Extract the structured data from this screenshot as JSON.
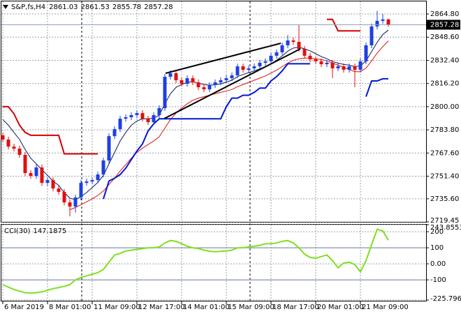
{
  "chart_data": [
    {
      "type": "candlestick",
      "title": "S&P,fs,H4",
      "up_color": "#1e40e0",
      "down_color": "#e01010",
      "grid": true,
      "xlim": [
        -0.5,
        75.75
      ],
      "xticks": [
        {
          "value": 0,
          "label": "6 Mar 2019"
        },
        {
          "value": 8,
          "label": "8 Mar 01:00"
        },
        {
          "value": 16,
          "label": "11 Mar 09:00"
        },
        {
          "value": 24,
          "label": "12 Mar 17:00"
        },
        {
          "value": 32,
          "label": "14 Mar 01:00"
        },
        {
          "value": 40,
          "label": "15 Mar 09:00"
        },
        {
          "value": 48,
          "label": "18 Mar 17:00"
        },
        {
          "value": 56,
          "label": "20 Mar 01:00"
        },
        {
          "value": 64,
          "label": "21 Mar 09:00"
        }
      ],
      "ylim": [
        2719.45,
        2873.6
      ],
      "yticks": [
        2719.45,
        {
          "value": 2735.6,
          "label": "2735.60"
        },
        {
          "value": 2751.4,
          "label": "2751.40"
        },
        {
          "value": 2767.6,
          "label": "2767.60"
        },
        {
          "value": 2783.8,
          "label": "2783.80"
        },
        {
          "value": 2800,
          "label": "2800.00"
        },
        {
          "value": 2816.2,
          "label": "2816.20"
        },
        {
          "value": 2832.4,
          "label": "2832.40"
        },
        {
          "value": 2848.6,
          "label": "2848.60"
        },
        {
          "value": 2864.8,
          "label": "2864.80"
        }
      ],
      "open": [
        2780.0,
        2777.0,
        2772.1,
        2770.7,
        2766.3,
        2753.6,
        2751.6,
        2757.5,
        2746.7,
        2748.7,
        2742.8,
        2740.4,
        2733.1,
        2730.2,
        2736.5,
        2746.7,
        2747.7,
        2748.7,
        2752.6,
        2762.4,
        2779.4,
        2784.3,
        2791.6,
        2792.6,
        2794.1,
        2795.5,
        2791.6,
        2789.2,
        2794.1,
        2799.0,
        2820.9,
        2823.4,
        2818.5,
        2816.0,
        2819.9,
        2817.0,
        2813.6,
        2812.1,
        2815.1,
        2817.0,
        2818.5,
        2819.9,
        2821.9,
        2828.2,
        2825.8,
        2826.8,
        2828.2,
        2830.7,
        2831.7,
        2835.6,
        2838.0,
        2842.9,
        2846.3,
        2845.3,
        2840.4,
        2835.6,
        2833.1,
        2831.7,
        2829.7,
        2830.7,
        2826.8,
        2828.2,
        2825.8,
        2828.2,
        2825.8,
        2831.7,
        2842.9,
        2856.1,
        2860.0,
        2861.03
      ],
      "high": [
        2782.0,
        2779.0,
        2774.1,
        2772.7,
        2768.3,
        2755.6,
        2759.5,
        2759.5,
        2750.7,
        2750.7,
        2744.8,
        2742.4,
        2735.1,
        2738.5,
        2748.7,
        2749.7,
        2750.7,
        2754.6,
        2764.4,
        2781.4,
        2786.3,
        2793.6,
        2794.6,
        2796.1,
        2797.5,
        2797.5,
        2793.6,
        2796.1,
        2801.0,
        2822.9,
        2825.4,
        2825.4,
        2820.5,
        2821.9,
        2821.9,
        2819.0,
        2815.6,
        2817.1,
        2819.0,
        2820.5,
        2821.9,
        2823.9,
        2830.2,
        2830.2,
        2828.8,
        2830.2,
        2832.7,
        2833.7,
        2837.6,
        2840.0,
        2844.9,
        2850.0,
        2848.3,
        2857.5,
        2842.4,
        2837.6,
        2835.1,
        2833.7,
        2832.7,
        2832.7,
        2830.2,
        2830.2,
        2830.2,
        2830.2,
        2833.7,
        2844.9,
        2858.1,
        2867.0,
        2865.0,
        2861.53
      ],
      "low": [
        2775.0,
        2770.1,
        2768.7,
        2764.3,
        2751.6,
        2749.6,
        2749.6,
        2744.7,
        2744.7,
        2740.8,
        2738.4,
        2731.1,
        2723.3,
        2726.0,
        2734.5,
        2744.7,
        2745.7,
        2746.7,
        2750.6,
        2760.4,
        2777.4,
        2782.3,
        2789.6,
        2790.6,
        2792.1,
        2789.6,
        2787.2,
        2787.2,
        2792.1,
        2797.0,
        2818.9,
        2816.5,
        2814.0,
        2814.0,
        2815.0,
        2811.6,
        2810.1,
        2810.1,
        2813.1,
        2815.0,
        2816.5,
        2817.9,
        2819.9,
        2823.8,
        2823.8,
        2824.8,
        2826.2,
        2828.7,
        2829.7,
        2833.6,
        2836.0,
        2840.9,
        2843.3,
        2838.4,
        2833.6,
        2831.1,
        2829.7,
        2827.7,
        2827.7,
        2820.0,
        2824.8,
        2823.8,
        2823.8,
        2813.6,
        2823.8,
        2829.7,
        2840.9,
        2854.1,
        2858.0,
        2855.78
      ],
      "close": [
        2777.0,
        2772.1,
        2770.7,
        2766.3,
        2753.6,
        2751.6,
        2757.5,
        2746.7,
        2748.7,
        2742.8,
        2740.4,
        2733.1,
        2730.2,
        2736.5,
        2746.7,
        2747.7,
        2748.7,
        2752.6,
        2762.4,
        2779.4,
        2784.3,
        2791.6,
        2792.6,
        2794.1,
        2795.5,
        2791.6,
        2789.2,
        2794.1,
        2799.0,
        2820.9,
        2823.4,
        2818.5,
        2816.0,
        2819.9,
        2817.0,
        2813.6,
        2812.1,
        2815.1,
        2817.0,
        2818.5,
        2819.9,
        2821.9,
        2828.2,
        2825.8,
        2826.8,
        2828.2,
        2830.7,
        2831.7,
        2835.6,
        2838.0,
        2842.9,
        2846.3,
        2845.3,
        2840.4,
        2835.6,
        2833.1,
        2831.7,
        2829.7,
        2830.7,
        2826.8,
        2828.2,
        2825.8,
        2828.2,
        2825.8,
        2831.7,
        2842.9,
        2856.1,
        2860.0,
        2861.0,
        2857.28
      ],
      "overlays": [
        {
          "color": "#0a1a5c",
          "width": 1,
          "values": [
            2791.0,
            2787.0,
            2782.0,
            2777.0,
            2770.0,
            2764.0,
            2760.0,
            2756.0,
            2752.0,
            2748.0,
            2745.0,
            2740.0,
            2736.0,
            2735.0,
            2737.0,
            2740.0,
            2743.5,
            2747.0,
            2752.0,
            2760.0,
            2768.0,
            2776.0,
            2782.0,
            2787.0,
            2790.0,
            2791.5,
            2791.5,
            2792.0,
            2794.0,
            2802.0,
            2809.0,
            2813.5,
            2815.5,
            2817.0,
            2817.5,
            2816.5,
            2815.5,
            2815.0,
            2815.3,
            2816.0,
            2817.2,
            2818.5,
            2821.0,
            2822.5,
            2823.8,
            2825.0,
            2826.5,
            2828.0,
            2830.0,
            2832.5,
            2835.5,
            2838.8,
            2841.0,
            2841.5,
            2840.5,
            2839.0,
            2837.0,
            2835.0,
            2833.5,
            2831.5,
            2830.5,
            2829.5,
            2829.0,
            2828.0,
            2828.5,
            2832.0,
            2838.5,
            2845.0,
            2850.5,
            2853.5
          ]
        },
        {
          "color": "#e01010",
          "width": 1,
          "values": [
            null,
            null,
            null,
            null,
            null,
            null,
            null,
            null,
            null,
            null,
            null,
            null,
            2728.0,
            2729.5,
            2731.5,
            2733.5,
            2735.5,
            2738.0,
            2741.0,
            2745.5,
            2750.0,
            2755.0,
            2759.5,
            2764.0,
            2768.0,
            2771.0,
            2773.5,
            2776.0,
            2779.0,
            2785.0,
            2791.0,
            2795.5,
            2799.0,
            2802.0,
            2804.5,
            2806.0,
            2807.0,
            2808.0,
            2809.0,
            2810.0,
            2811.0,
            2812.0,
            2814.0,
            2815.5,
            2817.0,
            2818.5,
            2820.0,
            2821.5,
            2823.5,
            2825.5,
            2828.0,
            2830.5,
            2832.5,
            2833.5,
            2834.0,
            2834.0,
            2833.5,
            2833.0,
            2832.0,
            2830.5,
            2829.0,
            2827.5,
            2826.0,
            2824.5,
            2824.5,
            2827.0,
            2832.0,
            2837.5,
            2842.0,
            2846.0
          ]
        },
        {
          "color": "#d40000",
          "width": 2,
          "values": [
            2800.0,
            2800.0,
            2795.0,
            2787.0,
            2782.0,
            2780.0,
            2780.0,
            2780.0,
            2780.0,
            2780.0,
            2780.0,
            2767.0,
            2767.0,
            2767.0,
            2767.0,
            2767.0,
            2767.0,
            2767.0,
            null,
            null,
            null,
            null,
            null,
            null,
            null,
            null,
            null,
            null,
            null,
            null,
            null,
            null,
            null,
            null,
            null,
            null,
            null,
            null,
            null,
            null,
            null,
            null,
            null,
            null,
            null,
            null,
            null,
            null,
            null,
            null,
            null,
            null,
            null,
            null,
            null,
            null,
            null,
            null,
            2861.0,
            2861.0,
            2853.0,
            2853.0,
            2853.0,
            2853.0,
            2853.0,
            null,
            null,
            null,
            null,
            null
          ]
        },
        {
          "color": "#0019d4",
          "width": 2,
          "values": [
            null,
            null,
            null,
            null,
            null,
            null,
            null,
            null,
            null,
            null,
            null,
            null,
            null,
            null,
            null,
            null,
            null,
            null,
            2735.5,
            2748.0,
            2750.0,
            2752.5,
            2757.0,
            2763.0,
            2769.0,
            2774.0,
            2783.0,
            2788.0,
            2791.5,
            2791.5,
            2791.5,
            2791.5,
            2791.5,
            2791.5,
            2791.5,
            2791.5,
            2791.5,
            2791.5,
            2791.5,
            2791.5,
            2800.0,
            2806.0,
            2806.0,
            2808.0,
            2808.0,
            2810.0,
            2813.0,
            2813.0,
            2818.0,
            2821.0,
            2825.0,
            2830.0,
            2830.0,
            2830.0,
            2830.0,
            2830.0,
            null,
            null,
            null,
            null,
            null,
            null,
            null,
            null,
            null,
            2807.0,
            2818.0,
            2818.0,
            2819.5,
            2819.5
          ]
        }
      ]
    },
    {
      "type": "line",
      "title": "CCI(30)",
      "grid": true,
      "ylim": [
        -225.7963,
        243.8553
      ],
      "yticks": [
        -225.7963,
        -100,
        {
          "value": 0,
          "label": "0.00"
        },
        100,
        200,
        243.8553
      ],
      "levels": [
        100,
        -100
      ],
      "level_color": "#6f7fa0",
      "series": [
        {
          "color": "#7fe01f",
          "values": [
            -130,
            -145,
            -160,
            -170,
            -180,
            -182,
            -180,
            -175,
            -165,
            -155,
            -148,
            -140,
            -130,
            -100,
            -85,
            -75,
            -65,
            -55,
            -35,
            10,
            55,
            65,
            80,
            85,
            90,
            95,
            100,
            100,
            105,
            130,
            145,
            140,
            125,
            110,
            100,
            95,
            85,
            78,
            75,
            78,
            80,
            85,
            100,
            100,
            105,
            110,
            115,
            125,
            125,
            130,
            140,
            145,
            130,
            100,
            60,
            40,
            35,
            45,
            55,
            20,
            -25,
            5,
            10,
            -5,
            -50,
            20,
            120,
            215,
            205,
            147.1875
          ]
        }
      ]
    }
  ]
}
